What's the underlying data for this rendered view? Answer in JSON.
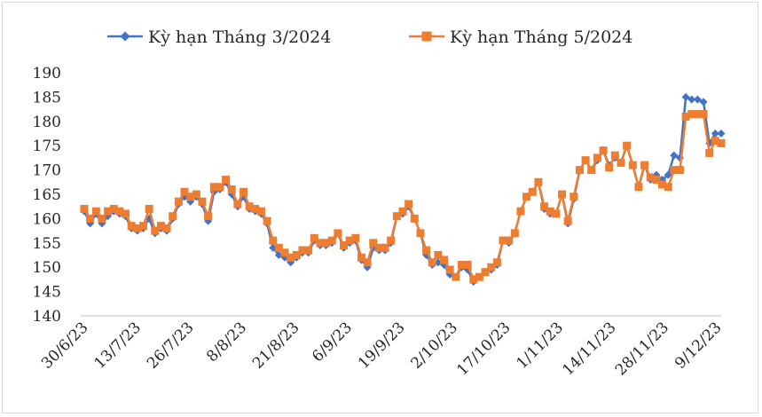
{
  "chart_data": {
    "type": "line",
    "title": "",
    "xlabel": "",
    "ylabel": "",
    "ylim": [
      140,
      190
    ],
    "yticks": [
      140,
      145,
      150,
      155,
      160,
      165,
      170,
      175,
      180,
      185,
      190
    ],
    "grid": false,
    "legend": "top",
    "x_tick_labels": [
      "30/6/23",
      "13/7/23",
      "26/7/23",
      "8/8/23",
      "21/8/23",
      "6/9/23",
      "19/9/23",
      "2/10/23",
      "17/10/23",
      "1/11/23",
      "14/11/23",
      "28/11/23",
      "9/12/23"
    ],
    "series": [
      {
        "name": "Kỳ hạn Tháng 3/2024",
        "color": "#4472c4",
        "marker": "diamond",
        "values": [
          161.5,
          159,
          161,
          159,
          160.5,
          161.5,
          161,
          160.5,
          158,
          157.5,
          158,
          160,
          157,
          158,
          157.5,
          160,
          163,
          164.5,
          163.5,
          164.5,
          163,
          159.5,
          165.5,
          166,
          167.5,
          165,
          162.5,
          164.5,
          162,
          161.5,
          161,
          159,
          154,
          152.5,
          152,
          151,
          152,
          153,
          153,
          155.5,
          154.5,
          154.5,
          155,
          157,
          154,
          155,
          155.5,
          151.5,
          150,
          154,
          153.5,
          153.5,
          155,
          160.5,
          161,
          162.5,
          160,
          157,
          152.5,
          150.5,
          151,
          150.5,
          148.5,
          148,
          150,
          149.5,
          147,
          148,
          149,
          149.5,
          150.5,
          155.5,
          155,
          157,
          161.5,
          164.5,
          165.5,
          167.5,
          162,
          161,
          161,
          165,
          159,
          164,
          170,
          172,
          170,
          172,
          174,
          171,
          172.5,
          171.5,
          175,
          171,
          166.5,
          171,
          168,
          169,
          168,
          169,
          173,
          172.5,
          185,
          184.5,
          184.5,
          184,
          175.5,
          177.5,
          177.5
        ]
      },
      {
        "name": "Kỳ hạn Tháng 5/2024",
        "color": "#ed7d31",
        "marker": "square",
        "values": [
          162,
          160,
          161.5,
          160,
          161.5,
          162,
          161.5,
          161,
          158.5,
          158,
          158.5,
          162,
          157.5,
          158.5,
          158,
          160.5,
          163.5,
          165.5,
          164.5,
          165,
          163.5,
          160.5,
          166.5,
          166.5,
          168,
          166,
          163,
          165.5,
          162.5,
          162,
          161.5,
          159.5,
          155.5,
          154,
          153,
          152,
          152.5,
          153.5,
          153.5,
          156,
          155,
          155,
          155.5,
          157,
          154.5,
          155.5,
          156,
          152,
          151,
          155,
          154,
          154,
          155.5,
          160.5,
          161.5,
          163,
          160,
          157,
          153.5,
          151,
          152.5,
          151.5,
          149.5,
          148,
          150.5,
          150.5,
          147.5,
          148,
          149,
          150,
          151,
          155.5,
          155.5,
          157,
          161.5,
          164.5,
          165.5,
          167.5,
          162.5,
          161.5,
          161,
          165,
          159.5,
          164.5,
          170,
          172,
          170,
          172.5,
          174,
          170.5,
          173,
          171.5,
          175,
          171,
          166.5,
          171,
          168.5,
          168,
          167,
          166.5,
          170,
          170,
          181,
          181.5,
          181.5,
          181.5,
          173.5,
          176,
          175.5
        ]
      }
    ]
  }
}
